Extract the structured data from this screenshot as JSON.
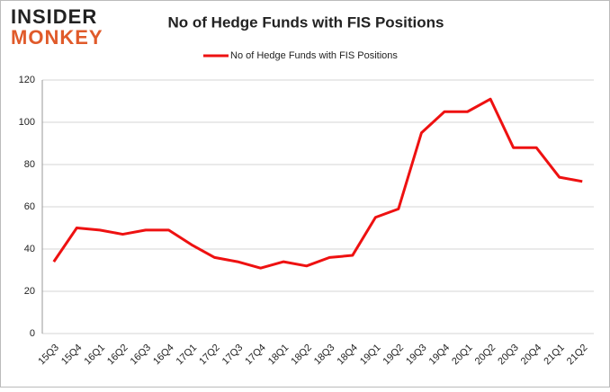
{
  "brand": {
    "line1": "INSIDER",
    "line2": "MONKEY"
  },
  "chart_data": {
    "type": "line",
    "title": "No of Hedge Funds with FIS Positions",
    "categories": [
      "15Q3",
      "15Q4",
      "16Q1",
      "16Q2",
      "16Q3",
      "16Q4",
      "17Q1",
      "17Q2",
      "17Q3",
      "17Q4",
      "18Q1",
      "18Q2",
      "18Q3",
      "18Q4",
      "19Q1",
      "19Q2",
      "19Q3",
      "19Q4",
      "20Q1",
      "20Q2",
      "20Q3",
      "20Q4",
      "21Q1",
      "21Q2"
    ],
    "series": [
      {
        "name": "No of Hedge Funds with FIS Positions",
        "color": "#ee1111",
        "values": [
          34,
          50,
          49,
          47,
          49,
          49,
          42,
          36,
          34,
          31,
          34,
          32,
          36,
          37,
          55,
          59,
          95,
          105,
          105,
          111,
          88,
          88,
          74,
          72
        ]
      }
    ],
    "ylim": [
      0,
      120
    ],
    "yticks": [
      0,
      20,
      40,
      60,
      80,
      100,
      120
    ],
    "grid": true,
    "legend": "top"
  }
}
